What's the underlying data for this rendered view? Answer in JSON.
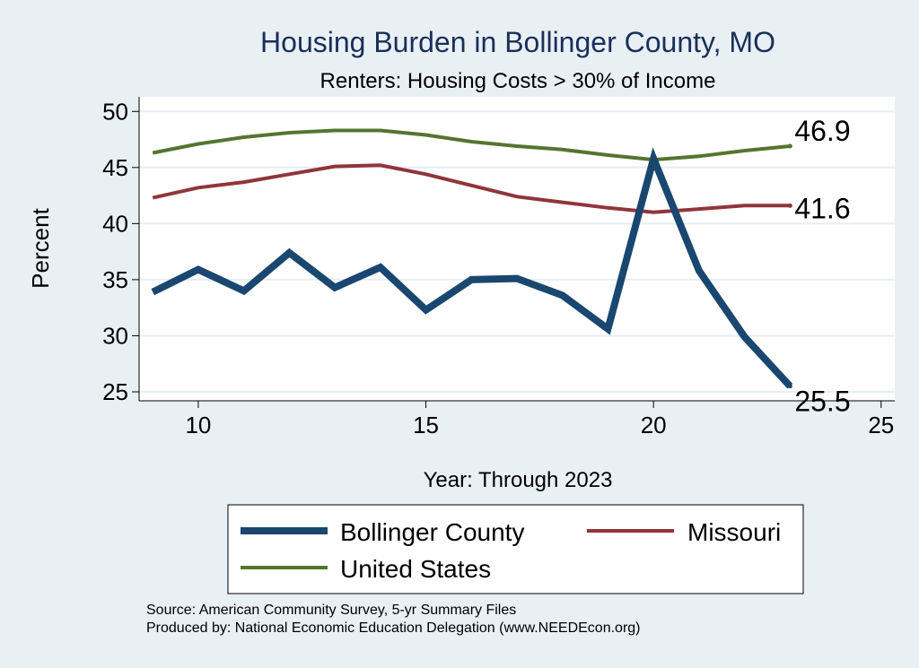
{
  "chart_data": {
    "type": "line",
    "title": "Housing Burden in Bollinger County, MO",
    "subtitle": "Renters: Housing Costs > 30% of Income",
    "xlabel": "Year: Through 2023",
    "ylabel": "Percent",
    "xlim": [
      8.7,
      25.3
    ],
    "ylim": [
      24.2,
      51.3
    ],
    "xticks": [
      10,
      15,
      20,
      25
    ],
    "yticks": [
      25,
      30,
      35,
      40,
      45,
      50
    ],
    "grid": true,
    "x": [
      9,
      10,
      11,
      12,
      13,
      14,
      15,
      16,
      17,
      18,
      19,
      20,
      21,
      22,
      23
    ],
    "series": [
      {
        "name": "Bollinger County",
        "color": "#1a476f",
        "values": [
          33.9,
          35.9,
          34.0,
          37.4,
          34.3,
          36.1,
          32.3,
          35.0,
          35.1,
          33.6,
          30.6,
          45.8,
          35.8,
          29.9,
          25.5
        ],
        "end_label": "25.5"
      },
      {
        "name": "Missouri",
        "color": "#90353b",
        "values": [
          42.3,
          43.2,
          43.7,
          44.4,
          45.1,
          45.2,
          44.4,
          43.4,
          42.4,
          41.9,
          41.4,
          41.0,
          41.3,
          41.6,
          41.6
        ],
        "end_label": "41.6"
      },
      {
        "name": "United States",
        "color": "#55752f",
        "values": [
          46.3,
          47.1,
          47.7,
          48.1,
          48.3,
          48.3,
          47.9,
          47.3,
          46.9,
          46.6,
          46.1,
          45.7,
          46.0,
          46.5,
          46.9
        ],
        "end_label": "46.9"
      }
    ],
    "legend": {
      "position": "bottom",
      "entries": [
        "Bollinger County",
        "Missouri",
        "United States"
      ]
    }
  },
  "source_line": "Source: American Community Survey, 5-yr Summary Files",
  "produced_line": "Produced by: National Economic Education Delegation (www.NEEDEcon.org)"
}
